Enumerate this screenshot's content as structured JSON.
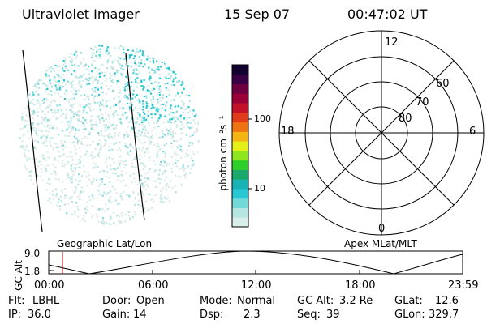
{
  "header": {
    "instrument": "Ultraviolet Imager",
    "date": "15 Sep 07",
    "time": "00:47:02 UT"
  },
  "colorbar": {
    "label": "photon cm⁻²s⁻¹",
    "ticks": [
      "100",
      "10"
    ],
    "colors": [
      "#d9efe9",
      "#b6e6e2",
      "#72d8d8",
      "#27c7d4",
      "#18b4b5",
      "#1aa86b",
      "#2fcf2a",
      "#8fe61d",
      "#e5f019",
      "#f3b414",
      "#ee7312",
      "#e23b1b",
      "#c3112a",
      "#9a0035",
      "#6e0042",
      "#3a0046",
      "#12002f"
    ]
  },
  "polar_plot": {
    "mlt_labels": [
      "12",
      "18",
      "6",
      "0"
    ],
    "lat_labels": [
      "60",
      "70",
      "80"
    ]
  },
  "orbit_plot": {
    "ylabel": "GC Alt",
    "yticks": [
      "9.0",
      "1.8"
    ],
    "left_title": "Geographic Lat/Lon",
    "right_title": "Apex MLat/MLT",
    "xticks": [
      "00:00",
      "06:00",
      "12:00",
      "18:00",
      "23:59"
    ]
  },
  "status": {
    "flt_label": "Flt:",
    "flt_value": "LBHL",
    "ip_label": "IP:",
    "ip_value": "36.0",
    "door_label": "Door:",
    "door_value": "Open",
    "gain_label": "Gain:",
    "gain_value": "14",
    "mode_label": "Mode:",
    "mode_value": "Normal",
    "dsp_label": "Dsp:",
    "dsp_value": "2.3",
    "gcalt_label": "GC Alt:",
    "gcalt_value": "3.2 Re",
    "seq_label": "Seq:",
    "seq_value": "39",
    "glat_label": "GLat:",
    "glat_value": "12.6",
    "glon_label": "GLon:",
    "glon_value": "329.7"
  }
}
